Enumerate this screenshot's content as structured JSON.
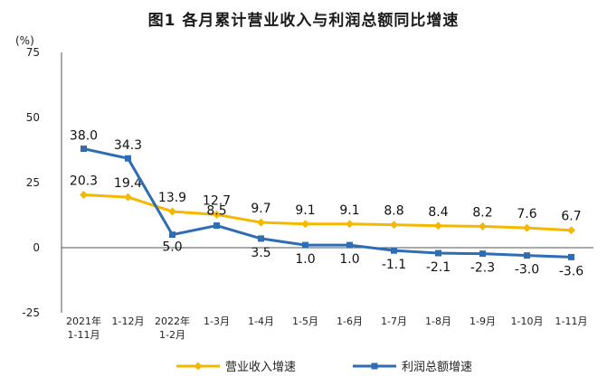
{
  "title": "图1  各月累计营业收入与利润总额同比增速",
  "unit": "(%)",
  "chart_data": {
    "type": "line",
    "categories": [
      [
        "2021年",
        "1-11月"
      ],
      [
        "1-12月"
      ],
      [
        "2022年",
        "1-2月"
      ],
      [
        "1-3月"
      ],
      [
        "1-4月"
      ],
      [
        "1-5月"
      ],
      [
        "1-6月"
      ],
      [
        "1-7月"
      ],
      [
        "1-8月"
      ],
      [
        "1-9月"
      ],
      [
        "1-10月"
      ],
      [
        "1-11月"
      ]
    ],
    "ylim": [
      -25,
      75
    ],
    "yticks": [
      -25,
      0,
      25,
      50,
      75
    ],
    "grid": false,
    "legend_position": "bottom",
    "series": [
      {
        "name": "营业收入增速",
        "color": "#F5B800",
        "marker": "diamond",
        "values": [
          20.3,
          19.4,
          13.9,
          12.7,
          9.7,
          9.1,
          9.1,
          8.8,
          8.4,
          8.2,
          7.6,
          6.7
        ],
        "labels": [
          "20.3",
          "19.4",
          "13.9",
          "12.7",
          "9.7",
          "9.1",
          "9.1",
          "8.8",
          "8.4",
          "8.2",
          "7.6",
          "6.7"
        ]
      },
      {
        "name": "利润总额增速",
        "color": "#2E6DB4",
        "marker": "square",
        "values": [
          38.0,
          34.3,
          5.0,
          8.5,
          3.5,
          1.0,
          1.0,
          -1.1,
          -2.1,
          -2.3,
          -3.0,
          -3.6
        ],
        "labels": [
          "38.0",
          "34.3",
          "5.0",
          "8.5",
          "3.5",
          "1.0",
          "1.0",
          "-1.1",
          "-2.1",
          "-2.3",
          "-3.0",
          "-3.6"
        ]
      }
    ]
  }
}
